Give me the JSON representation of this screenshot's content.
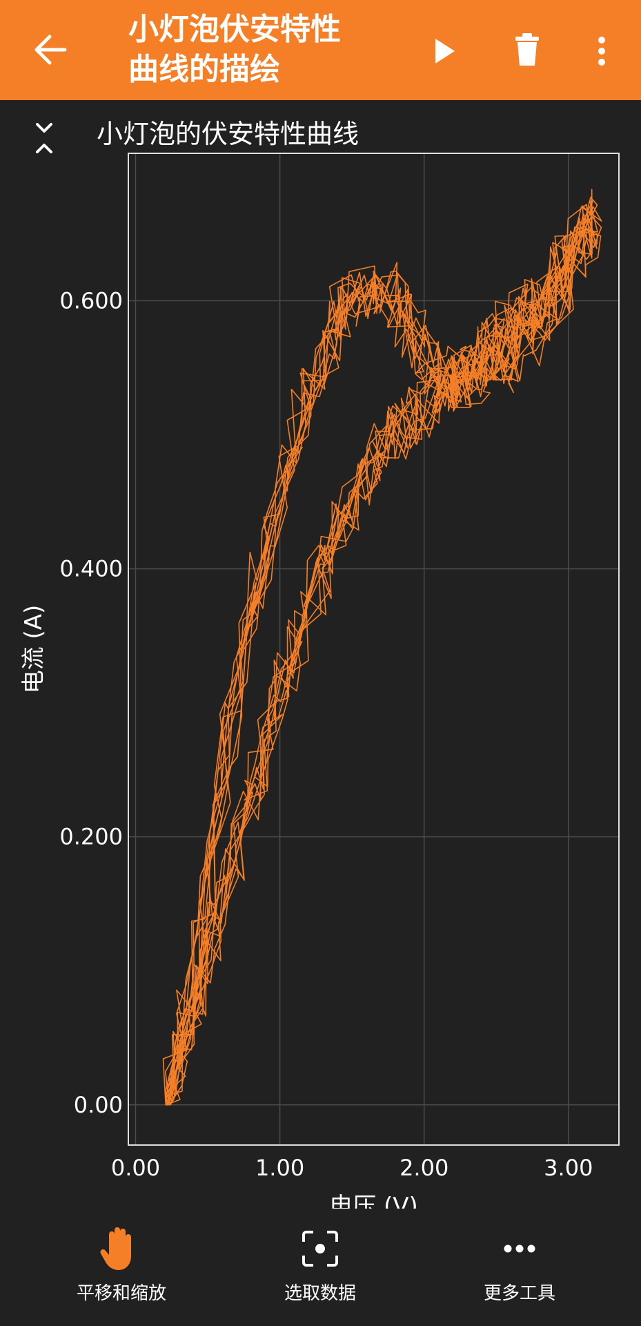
{
  "app_bar": {
    "title": "小灯泡伏安特性\n曲线的描绘",
    "icons": [
      "back-arrow-icon",
      "play-icon",
      "delete-icon",
      "more-vert-icon"
    ],
    "background_color": "#f57f26"
  },
  "graph_title": "小灯泡的伏安特性曲线",
  "chart_data": {
    "type": "line",
    "title": "小灯泡的伏安特性曲线",
    "xlabel": "电压 (V)",
    "ylabel": "电流 (A)",
    "xlim": [
      -0.05,
      3.35
    ],
    "ylim": [
      -0.03,
      0.71
    ],
    "x_ticks": [
      0,
      1,
      2,
      3
    ],
    "x_tick_labels": [
      "0.00",
      "1.00",
      "2.00",
      "3.00"
    ],
    "y_ticks": [
      0,
      0.2,
      0.4,
      0.6
    ],
    "y_tick_labels": [
      "0.00",
      "0.200",
      "0.400",
      "0.600"
    ],
    "grid": true,
    "line_color": "#f57f26",
    "series": [
      {
        "values_note_excluded": true,
        "x": [
          0.22,
          0.3,
          0.4,
          0.5,
          0.6,
          0.7,
          0.8,
          0.9,
          1.0,
          1.1,
          1.2,
          1.3,
          1.4,
          1.5,
          1.6,
          1.7,
          1.8,
          1.9,
          2.0,
          2.1,
          2.2,
          2.3,
          2.4,
          2.5,
          2.6,
          2.7,
          2.8,
          2.9,
          3.0,
          3.1,
          3.2,
          3.1,
          3.0,
          2.9,
          2.8,
          2.7,
          2.6,
          2.5,
          2.4,
          2.3,
          2.2,
          2.1,
          2.0,
          1.9,
          1.8,
          1.7,
          1.6,
          1.5,
          1.4,
          1.3,
          1.2,
          1.1,
          1.0,
          0.9,
          0.8,
          0.7,
          0.6,
          0.5,
          0.4,
          0.3,
          0.22
        ],
        "y": [
          0.0,
          0.03,
          0.07,
          0.11,
          0.15,
          0.19,
          0.23,
          0.27,
          0.31,
          0.34,
          0.37,
          0.4,
          0.43,
          0.45,
          0.47,
          0.49,
          0.5,
          0.51,
          0.52,
          0.53,
          0.54,
          0.55,
          0.56,
          0.57,
          0.58,
          0.59,
          0.6,
          0.62,
          0.63,
          0.65,
          0.67,
          0.64,
          0.61,
          0.6,
          0.58,
          0.57,
          0.56,
          0.55,
          0.55,
          0.54,
          0.54,
          0.55,
          0.56,
          0.58,
          0.6,
          0.61,
          0.61,
          0.6,
          0.59,
          0.56,
          0.53,
          0.49,
          0.45,
          0.41,
          0.37,
          0.31,
          0.24,
          0.16,
          0.09,
          0.04,
          0.0
        ]
      }
    ]
  },
  "bottom_tools": [
    {
      "label": "平移和缩放",
      "icon": "hand-icon",
      "active": true
    },
    {
      "label": "选取数据",
      "icon": "select-data-icon",
      "active": false
    },
    {
      "label": "更多工具",
      "icon": "more-horiz-icon",
      "active": false
    }
  ]
}
